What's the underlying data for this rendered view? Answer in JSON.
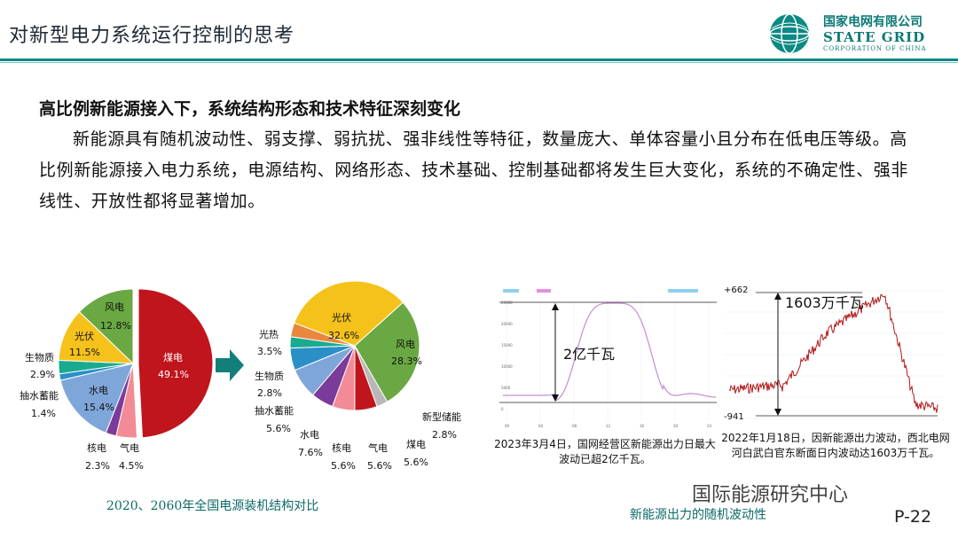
{
  "header": {
    "title": "对新型电力系统运行控制的思考",
    "logo_cn": "国家电网有限公司",
    "logo_en": "STATE GRID",
    "logo_en_sub": "CORPORATION OF CHINA"
  },
  "content": {
    "heading": "高比例新能源接入下，系统结构形态和技术特征深刻变化",
    "paragraph": "新能源具有随机波动性、弱支撑、弱抗扰、强非线性等特征，数量庞大、单体容量小且分布在低电压等级。高比例新能源接入电力系统，电源结构、网络形态、技术基础、控制基础都将发生巨大变化，系统的不确定性、强非线性、开放性都将显著增加。"
  },
  "chart_data": [
    {
      "type": "pie",
      "year": "2020",
      "slices": [
        {
          "name": "煤电",
          "label": "49.1%",
          "value": 49.1,
          "color": "#c0151c"
        },
        {
          "name": "气电",
          "label": "4.5%",
          "value": 4.5,
          "color": "#f28b95"
        },
        {
          "name": "核电",
          "label": "2.3%",
          "value": 2.3,
          "color": "#7a3b9a"
        },
        {
          "name": "水电",
          "label": "15.4%",
          "value": 15.4,
          "color": "#7fa6d8"
        },
        {
          "name": "抽水蓄能",
          "label": "1.4%",
          "value": 1.4,
          "color": "#2b8fc7"
        },
        {
          "name": "生物质",
          "label": "2.9%",
          "value": 2.9,
          "color": "#1aaa8f"
        },
        {
          "name": "光伏",
          "label": "11.5%",
          "value": 11.5,
          "color": "#f5c21b"
        },
        {
          "name": "风电",
          "label": "12.8%",
          "value": 12.8,
          "color": "#6aa843"
        }
      ]
    },
    {
      "type": "pie",
      "year": "2060",
      "slices": [
        {
          "name": "风电",
          "label": "28.3%",
          "value": 28.3,
          "color": "#6aa843"
        },
        {
          "name": "新型储能",
          "label": "2.8%",
          "value": 2.8,
          "color": "#b8b8b8"
        },
        {
          "name": "煤电",
          "label": "5.6%",
          "value": 5.6,
          "color": "#c0151c"
        },
        {
          "name": "气电",
          "label": "5.6%",
          "value": 5.6,
          "color": "#f28b95"
        },
        {
          "name": "核电",
          "label": "5.6%",
          "value": 5.6,
          "color": "#7a3b9a"
        },
        {
          "name": "水电",
          "label": "7.6%",
          "value": 7.6,
          "color": "#7fa6d8"
        },
        {
          "name": "抽水蓄能",
          "label": "5.6%",
          "value": 5.6,
          "color": "#2b8fc7"
        },
        {
          "name": "生物质",
          "label": "2.8%",
          "value": 2.8,
          "color": "#1aaa8f"
        },
        {
          "name": "光热",
          "label": "3.5%",
          "value": 3.5,
          "color": "#e9873f"
        },
        {
          "name": "光伏",
          "label": "32.6%",
          "value": 32.6,
          "color": "#f5c21b"
        }
      ]
    },
    {
      "type": "line",
      "annotation": "2亿千瓦",
      "x_ticks": [
        "00",
        "04",
        "08",
        "12",
        "16",
        "20",
        "24"
      ],
      "y_ticks": [
        "25000",
        "20000",
        "15000",
        "10000",
        "5000",
        "0"
      ],
      "color": "#c98ad8"
    },
    {
      "type": "line",
      "annotation": "1603万千瓦",
      "top_label": "+662",
      "bottom_label": "-941",
      "color": "#b01818"
    }
  ],
  "captions": {
    "pie_caption": "2020、2060年全国电源装机结构对比",
    "note_left": "2023年3月4日，国网经营区新能源出力日最大波动已超2亿千瓦。",
    "note_right": "2022年1月18日，因新能源出力波动，西北电网河白武白官东断面日内波动达1603万千瓦。",
    "bottom_caption": "新能源出力的随机波动性",
    "watermark": "国际能源研究中心",
    "page_number": "P-22"
  }
}
